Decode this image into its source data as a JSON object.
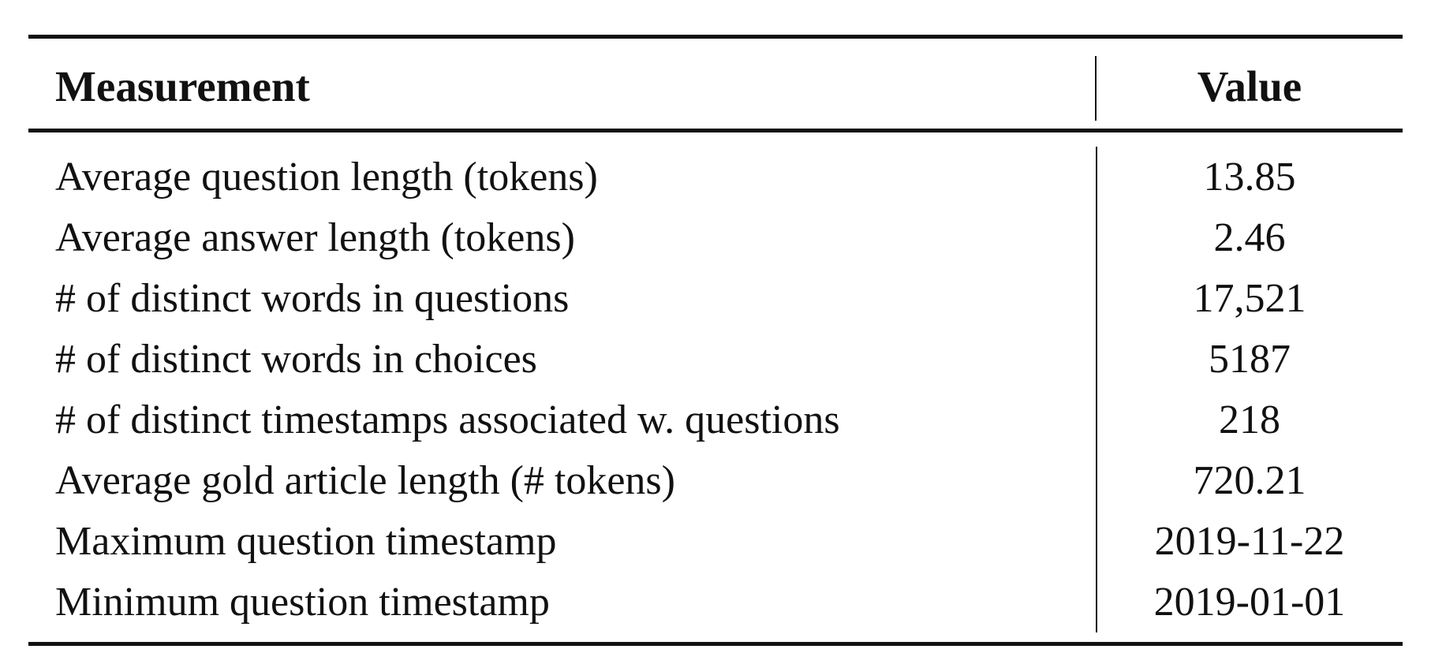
{
  "table": {
    "headers": {
      "measurement": "Measurement",
      "value": "Value"
    },
    "rows": [
      {
        "measurement": "Average question length (tokens)",
        "value": "13.85"
      },
      {
        "measurement": "Average answer length (tokens)",
        "value": "2.46"
      },
      {
        "measurement": "# of distinct words in questions",
        "value": "17,521"
      },
      {
        "measurement": "# of distinct words in choices",
        "value": "5187"
      },
      {
        "measurement": "# of distinct timestamps associated w. questions",
        "value": "218"
      },
      {
        "measurement": "Average gold article length (# tokens)",
        "value": "720.21"
      },
      {
        "measurement": "Maximum question timestamp",
        "value": "2019-11-22"
      },
      {
        "measurement": "Minimum question timestamp",
        "value": "2019-01-01"
      }
    ]
  }
}
